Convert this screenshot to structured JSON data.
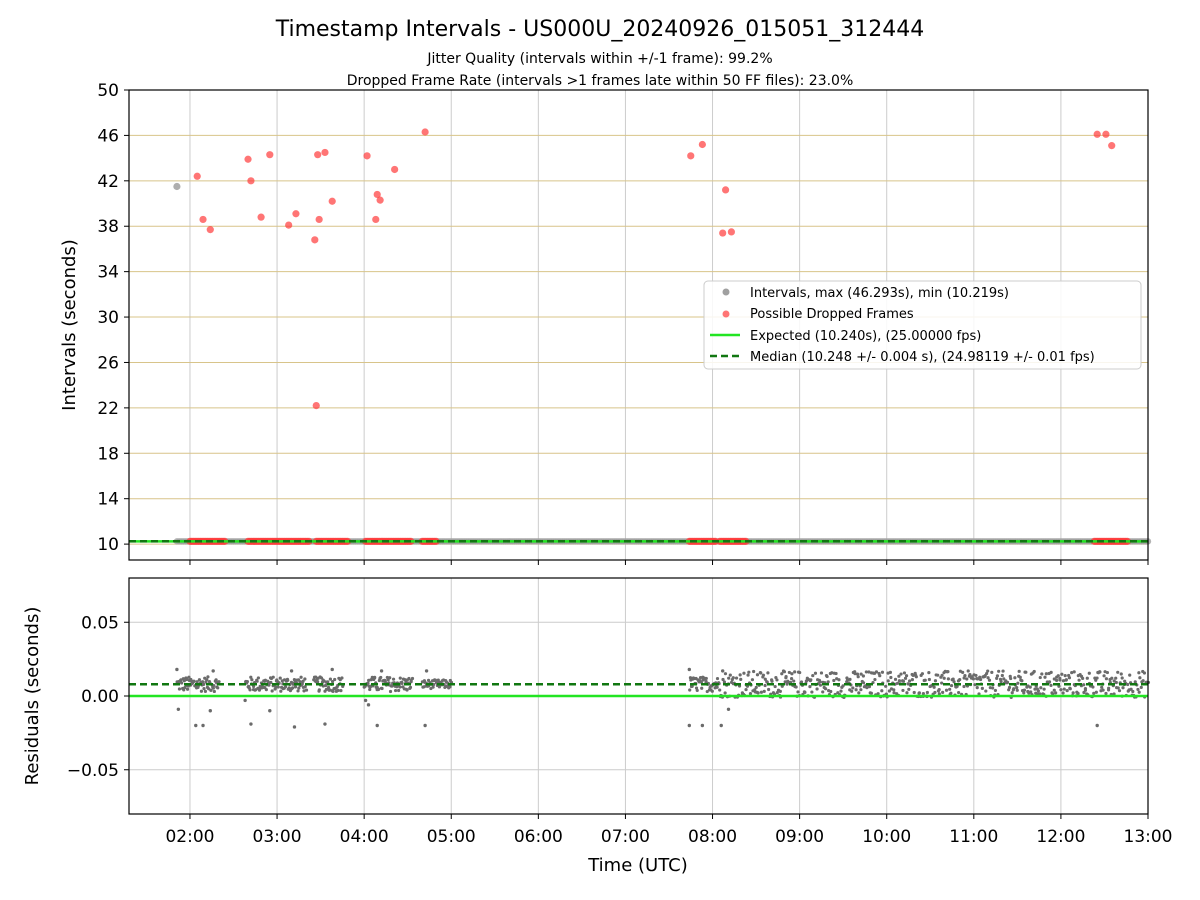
{
  "title": "Timestamp Intervals - US000U_20240926_015051_312444",
  "subtitles": [
    "Jitter Quality (intervals within +/-1 frame): 99.2%",
    "Dropped Frame Rate (intervals >1 frames late within 50 FF files): 23.0%"
  ],
  "colors": {
    "intervals": "#a0a0a0",
    "dropped": "#ff3b3b",
    "expected": "#22e522",
    "median": "#117711",
    "residual": "#6b6b6b",
    "hgrid_top": "#d8c48a",
    "grid": "#cccccc"
  },
  "chart_data": [
    {
      "type": "scatter",
      "ylabel": "Intervals (seconds)",
      "ylim": [
        8.6,
        50
      ],
      "yticks": [
        10,
        14,
        18,
        22,
        26,
        30,
        34,
        38,
        42,
        46,
        50
      ],
      "xlim": [
        "01:18",
        "13:00"
      ],
      "grid": "on",
      "legend_position": "right",
      "legend": [
        "Intervals, max (46.293s), min (10.219s)",
        "Possible Dropped Frames",
        "Expected (10.240s), (25.00000 fps)",
        "Median (10.248 +/- 0.004 s), (24.98119 +/- 0.01 fps)"
      ],
      "expected_value": 10.24,
      "median_value": 10.248,
      "intervals_points": [
        {
          "x": "01:51",
          "y": 41.5
        }
      ],
      "dropped_points": [
        {
          "x": "02:05",
          "y": 42.4
        },
        {
          "x": "02:09",
          "y": 38.6
        },
        {
          "x": "02:14",
          "y": 37.7
        },
        {
          "x": "02:40",
          "y": 43.9
        },
        {
          "x": "02:42",
          "y": 42.0
        },
        {
          "x": "02:49",
          "y": 38.8
        },
        {
          "x": "02:55",
          "y": 44.3
        },
        {
          "x": "03:08",
          "y": 38.1
        },
        {
          "x": "03:13",
          "y": 39.1
        },
        {
          "x": "03:26",
          "y": 36.8
        },
        {
          "x": "03:27",
          "y": 22.2
        },
        {
          "x": "03:28",
          "y": 44.3
        },
        {
          "x": "03:29",
          "y": 38.6
        },
        {
          "x": "03:33",
          "y": 44.5
        },
        {
          "x": "03:38",
          "y": 40.2
        },
        {
          "x": "04:02",
          "y": 44.2
        },
        {
          "x": "04:08",
          "y": 38.6
        },
        {
          "x": "04:09",
          "y": 40.8
        },
        {
          "x": "04:11",
          "y": 40.3
        },
        {
          "x": "04:21",
          "y": 43.0
        },
        {
          "x": "04:42",
          "y": 46.3
        },
        {
          "x": "07:45",
          "y": 44.2
        },
        {
          "x": "07:53",
          "y": 45.2
        },
        {
          "x": "08:07",
          "y": 37.4
        },
        {
          "x": "08:09",
          "y": 41.2
        },
        {
          "x": "08:13",
          "y": 37.5
        },
        {
          "x": "12:25",
          "y": 46.1
        },
        {
          "x": "12:31",
          "y": 46.1
        },
        {
          "x": "12:35",
          "y": 45.1
        }
      ],
      "dropped_baseline_ranges": [
        [
          "02:00",
          "02:24"
        ],
        [
          "02:40",
          "03:22"
        ],
        [
          "03:27",
          "03:49"
        ],
        [
          "04:01",
          "04:33"
        ],
        [
          "04:40",
          "04:50"
        ],
        [
          "07:44",
          "08:02"
        ],
        [
          "08:05",
          "08:24"
        ],
        [
          "12:23",
          "12:46"
        ]
      ],
      "baseline_value": 10.24
    },
    {
      "type": "scatter",
      "xlabel": "Time (UTC)",
      "ylabel": "Residuals (seconds)",
      "ylim": [
        -0.08,
        0.08
      ],
      "yticks": [
        -0.05,
        0.0,
        0.05
      ],
      "ytick_labels": [
        "−0.05",
        "0.00",
        "0.05"
      ],
      "xlim": [
        "01:18",
        "13:00"
      ],
      "xticks": [
        "02:00",
        "03:00",
        "04:00",
        "05:00",
        "06:00",
        "07:00",
        "08:00",
        "09:00",
        "10:00",
        "11:00",
        "12:00",
        "13:00"
      ],
      "grid": "on",
      "expected_value": 0.0,
      "median_value": 0.008,
      "residual_points": [
        {
          "x": "01:51",
          "y": 0.018
        },
        {
          "x": "01:52",
          "y": -0.009
        },
        {
          "x": "02:04",
          "y": -0.02
        },
        {
          "x": "02:09",
          "y": -0.02
        },
        {
          "x": "02:14",
          "y": -0.01
        },
        {
          "x": "02:16",
          "y": 0.017
        },
        {
          "x": "02:38",
          "y": -0.003
        },
        {
          "x": "02:42",
          "y": -0.019
        },
        {
          "x": "02:55",
          "y": -0.01
        },
        {
          "x": "03:10",
          "y": 0.017
        },
        {
          "x": "03:12",
          "y": -0.021
        },
        {
          "x": "03:33",
          "y": -0.019
        },
        {
          "x": "03:38",
          "y": 0.018
        },
        {
          "x": "04:01",
          "y": -0.003
        },
        {
          "x": "04:03",
          "y": -0.006
        },
        {
          "x": "04:09",
          "y": -0.02
        },
        {
          "x": "04:12",
          "y": 0.017
        },
        {
          "x": "04:42",
          "y": -0.02
        },
        {
          "x": "04:43",
          "y": 0.017
        },
        {
          "x": "07:44",
          "y": -0.02
        },
        {
          "x": "07:44",
          "y": 0.018
        },
        {
          "x": "07:53",
          "y": -0.02
        },
        {
          "x": "08:06",
          "y": -0.02
        },
        {
          "x": "08:07",
          "y": 0.017
        },
        {
          "x": "08:11",
          "y": -0.009
        },
        {
          "x": "12:25",
          "y": -0.02
        }
      ],
      "residual_clusters": [
        {
          "start": "01:51",
          "end": "02:20",
          "center": 0.008,
          "spread": 0.005
        },
        {
          "start": "02:38",
          "end": "03:20",
          "center": 0.008,
          "spread": 0.005
        },
        {
          "start": "03:25",
          "end": "03:45",
          "center": 0.008,
          "spread": 0.005
        },
        {
          "start": "04:00",
          "end": "04:33",
          "center": 0.008,
          "spread": 0.005
        },
        {
          "start": "04:40",
          "end": "05:00",
          "center": 0.008,
          "spread": 0.003
        },
        {
          "start": "07:44",
          "end": "08:05",
          "center": 0.008,
          "spread": 0.005
        },
        {
          "start": "08:05",
          "end": "13:00",
          "center": 0.008,
          "spread": 0.009
        }
      ]
    }
  ]
}
